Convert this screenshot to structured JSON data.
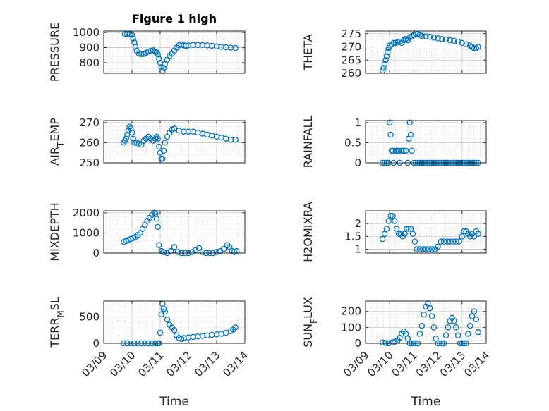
{
  "figure": {
    "title": "Figure 1 high",
    "marker_color": "#0072BD",
    "background": "#ffffff"
  },
  "chart_data": [
    {
      "type": "scatter",
      "id": "pressure",
      "title": "Figure 1 high",
      "xlabel": "",
      "ylabel": "PRESSURE",
      "xlim": [
        "03/09",
        "03/14"
      ],
      "ylim": [
        730,
        1010
      ],
      "yticks": [
        800,
        900,
        1000
      ],
      "xticks": [
        "03/09",
        "03/10",
        "03/11",
        "03/12",
        "03/13",
        "03/14"
      ],
      "show_xtick_labels": false,
      "grid": true,
      "x": [
        "03/09 18:00",
        "03/09 20:00",
        "03/09 22:00",
        "03/10 00:00",
        "03/10 01:00",
        "03/10 02:00",
        "03/10 03:00",
        "03/10 04:00",
        "03/10 06:00",
        "03/10 08:00",
        "03/10 10:00",
        "03/10 12:00",
        "03/10 14:00",
        "03/10 16:00",
        "03/10 18:00",
        "03/10 20:00",
        "03/10 21:00",
        "03/10 22:00",
        "03/10 23:00",
        "03/11 00:00",
        "03/11 01:00",
        "03/11 02:00",
        "03/11 03:00",
        "03/11 04:00",
        "03/11 06:00",
        "03/11 08:00",
        "03/11 10:00",
        "03/11 12:00",
        "03/11 14:00",
        "03/11 16:00",
        "03/11 18:00",
        "03/11 20:00",
        "03/11 22:00",
        "03/12 00:00",
        "03/12 04:00",
        "03/12 08:00",
        "03/12 12:00",
        "03/12 16:00",
        "03/12 20:00",
        "03/13 00:00",
        "03/13 04:00",
        "03/13 08:00",
        "03/13 12:00",
        "03/13 16:00"
      ],
      "y": [
        990,
        990,
        988,
        985,
        960,
        935,
        905,
        880,
        860,
        857,
        858,
        865,
        875,
        878,
        882,
        872,
        868,
        855,
        825,
        800,
        770,
        745,
        765,
        790,
        820,
        845,
        860,
        880,
        900,
        915,
        922,
        915,
        912,
        915,
        918,
        918,
        917,
        915,
        912,
        908,
        905,
        902,
        900,
        898
      ]
    },
    {
      "type": "scatter",
      "id": "theta",
      "xlabel": "",
      "ylabel": "THETA",
      "xlim": [
        "03/09",
        "03/14"
      ],
      "ylim": [
        260,
        276
      ],
      "yticks": [
        260,
        265,
        270,
        275
      ],
      "xticks": [
        "03/09",
        "03/10",
        "03/11",
        "03/12",
        "03/13",
        "03/14"
      ],
      "show_xtick_labels": false,
      "grid": true,
      "x": [
        "03/09 17:00",
        "03/09 18:00",
        "03/09 19:00",
        "03/09 20:00",
        "03/09 21:00",
        "03/09 22:00",
        "03/09 23:00",
        "03/10 00:00",
        "03/10 02:00",
        "03/10 04:00",
        "03/10 06:00",
        "03/10 08:00",
        "03/10 10:00",
        "03/10 12:00",
        "03/10 14:00",
        "03/10 16:00",
        "03/10 18:00",
        "03/10 20:00",
        "03/10 22:00",
        "03/11 00:00",
        "03/11 02:00",
        "03/11 04:00",
        "03/11 06:00",
        "03/11 08:00",
        "03/11 12:00",
        "03/11 16:00",
        "03/11 20:00",
        "03/12 00:00",
        "03/12 04:00",
        "03/12 08:00",
        "03/12 12:00",
        "03/12 16:00",
        "03/12 20:00",
        "03/13 00:00",
        "03/13 04:00",
        "03/13 08:00",
        "03/13 10:00",
        "03/13 12:00",
        "03/13 14:00",
        "03/13 16:00"
      ],
      "y": [
        261,
        262,
        263.5,
        265,
        266.5,
        268,
        269.5,
        270.5,
        271,
        271.5,
        271.5,
        271.8,
        272,
        271.5,
        272.5,
        273,
        272.5,
        273.5,
        274,
        274.5,
        275,
        274.8,
        274.5,
        274.2,
        274,
        273.8,
        273.5,
        273.2,
        273,
        272.8,
        272.5,
        272.3,
        272,
        271.5,
        271,
        270.5,
        270,
        269.5,
        269.5,
        270
      ]
    },
    {
      "type": "scatter",
      "id": "air_temp",
      "xlabel": "",
      "ylabel": "AIR_TEMP",
      "ylabel_parts": [
        "AIR",
        "T",
        "EMP"
      ],
      "xlim": [
        "03/09",
        "03/14"
      ],
      "ylim": [
        250,
        271
      ],
      "yticks": [
        250,
        260,
        270
      ],
      "xticks": [
        "03/09",
        "03/10",
        "03/11",
        "03/12",
        "03/13",
        "03/14"
      ],
      "show_xtick_labels": false,
      "grid": true,
      "x": [
        "03/09 17:00",
        "03/09 18:00",
        "03/09 19:00",
        "03/09 20:00",
        "03/09 21:00",
        "03/09 22:00",
        "03/09 23:00",
        "03/10 00:00",
        "03/10 01:00",
        "03/10 02:00",
        "03/10 04:00",
        "03/10 06:00",
        "03/10 08:00",
        "03/10 10:00",
        "03/10 12:00",
        "03/10 14:00",
        "03/10 16:00",
        "03/10 18:00",
        "03/10 20:00",
        "03/10 21:00",
        "03/10 22:00",
        "03/10 23:00",
        "03/11 00:00",
        "03/11 01:00",
        "03/11 02:00",
        "03/11 03:00",
        "03/11 04:00",
        "03/11 06:00",
        "03/11 08:00",
        "03/11 10:00",
        "03/11 12:00",
        "03/11 16:00",
        "03/11 20:00",
        "03/12 00:00",
        "03/12 04:00",
        "03/12 08:00",
        "03/12 12:00",
        "03/12 16:00",
        "03/12 20:00",
        "03/13 00:00",
        "03/13 04:00",
        "03/13 08:00",
        "03/13 12:00",
        "03/13 16:00"
      ],
      "y": [
        260,
        261,
        262,
        264,
        266,
        268,
        267,
        265,
        262,
        260,
        260,
        259.5,
        259,
        261,
        262,
        263,
        262,
        261,
        262,
        263,
        262,
        258,
        255,
        252,
        252,
        256,
        260,
        263,
        265,
        266.5,
        267,
        266,
        265.5,
        265.5,
        265.5,
        265,
        264.5,
        264,
        263.5,
        263,
        262.5,
        262,
        261.5,
        261.5
      ]
    },
    {
      "type": "scatter",
      "id": "rainfall",
      "xlabel": "",
      "ylabel": "RAINFALL",
      "xlim": [
        "03/09",
        "03/14"
      ],
      "ylim": [
        0,
        1.05
      ],
      "yticks": [
        0,
        0.5,
        1
      ],
      "xticks": [
        "03/09",
        "03/10",
        "03/11",
        "03/12",
        "03/13",
        "03/14"
      ],
      "show_xtick_labels": false,
      "grid": true,
      "x": [
        "03/09 17:00",
        "03/09 19:00",
        "03/09 21:00",
        "03/09 23:00",
        "03/10 00:00",
        "03/10 01:00",
        "03/10 02:00",
        "03/10 03:00",
        "03/10 04:00",
        "03/10 06:00",
        "03/10 08:00",
        "03/10 09:00",
        "03/10 10:00",
        "03/10 12:00",
        "03/10 14:00",
        "03/10 16:00",
        "03/10 18:00",
        "03/10 19:00",
        "03/10 20:00",
        "03/10 21:00",
        "03/10 22:00",
        "03/11 00:00",
        "03/11 02:00",
        "03/11 04:00",
        "03/11 06:00",
        "03/11 08:00",
        "03/11 10:00",
        "03/11 12:00",
        "03/11 14:00",
        "03/11 16:00",
        "03/11 18:00",
        "03/11 20:00",
        "03/11 22:00",
        "03/12 00:00",
        "03/12 02:00",
        "03/12 04:00",
        "03/12 06:00",
        "03/12 08:00",
        "03/12 10:00",
        "03/12 12:00",
        "03/12 14:00",
        "03/12 16:00",
        "03/12 18:00",
        "03/12 20:00",
        "03/12 22:00",
        "03/13 00:00",
        "03/13 02:00",
        "03/13 04:00",
        "03/13 06:00",
        "03/13 08:00",
        "03/13 10:00",
        "03/13 12:00",
        "03/13 14:00",
        "03/13 16:00"
      ],
      "y": [
        0,
        0,
        0,
        0,
        1,
        0.7,
        0.3,
        0.3,
        0,
        0.3,
        0.3,
        0.3,
        0,
        0.3,
        0.3,
        0.3,
        0,
        0.6,
        1,
        0.7,
        0.3,
        0,
        0,
        0,
        0,
        0,
        0,
        0,
        0,
        0,
        0,
        0,
        0,
        0,
        0,
        0,
        0,
        0,
        0,
        0,
        0,
        0,
        0,
        0,
        0,
        0,
        0,
        0,
        0,
        0,
        0,
        0,
        0,
        0
      ]
    },
    {
      "type": "scatter",
      "id": "mixdepth",
      "xlabel": "",
      "ylabel": "MIXDEPTH",
      "xlim": [
        "03/09",
        "03/14"
      ],
      "ylim": [
        0,
        2100
      ],
      "yticks": [
        0,
        1000,
        2000
      ],
      "xticks": [
        "03/09",
        "03/10",
        "03/11",
        "03/12",
        "03/13",
        "03/14"
      ],
      "show_xtick_labels": false,
      "grid": true,
      "x": [
        "03/09 17:00",
        "03/09 19:00",
        "03/09 21:00",
        "03/09 23:00",
        "03/10 01:00",
        "03/10 03:00",
        "03/10 05:00",
        "03/10 07:00",
        "03/10 09:00",
        "03/10 11:00",
        "03/10 13:00",
        "03/10 15:00",
        "03/10 17:00",
        "03/10 19:00",
        "03/10 20:00",
        "03/10 21:00",
        "03/10 22:00",
        "03/10 23:00",
        "03/11 01:00",
        "03/11 03:00",
        "03/11 06:00",
        "03/11 09:00",
        "03/11 12:00",
        "03/11 15:00",
        "03/11 18:00",
        "03/11 21:00",
        "03/12 00:00",
        "03/12 03:00",
        "03/12 06:00",
        "03/12 09:00",
        "03/12 12:00",
        "03/12 15:00",
        "03/12 18:00",
        "03/12 21:00",
        "03/13 00:00",
        "03/13 03:00",
        "03/13 06:00",
        "03/13 09:00",
        "03/13 11:00",
        "03/13 13:00",
        "03/13 15:00",
        "03/13 17:00"
      ],
      "y": [
        550,
        600,
        650,
        700,
        750,
        800,
        900,
        1000,
        1200,
        1400,
        1600,
        1750,
        1900,
        2000,
        1950,
        1700,
        1300,
        400,
        100,
        50,
        0,
        100,
        300,
        50,
        0,
        0,
        0,
        50,
        150,
        250,
        50,
        0,
        0,
        0,
        50,
        100,
        200,
        400,
        300,
        100,
        50,
        100
      ]
    },
    {
      "type": "scatter",
      "id": "h2omixra",
      "xlabel": "",
      "ylabel": "H2OMIXRA",
      "xlim": [
        "03/09",
        "03/14"
      ],
      "ylim": [
        0.85,
        2.5
      ],
      "yticks": [
        1,
        1.5,
        2
      ],
      "xticks": [
        "03/09",
        "03/10",
        "03/11",
        "03/12",
        "03/13",
        "03/14"
      ],
      "show_xtick_labels": false,
      "grid": true,
      "x": [
        "03/09 17:00",
        "03/09 19:00",
        "03/09 21:00",
        "03/09 23:00",
        "03/10 01:00",
        "03/10 03:00",
        "03/10 05:00",
        "03/10 07:00",
        "03/10 09:00",
        "03/10 11:00",
        "03/10 13:00",
        "03/10 15:00",
        "03/10 17:00",
        "03/10 19:00",
        "03/10 21:00",
        "03/10 23:00",
        "03/11 01:00",
        "03/11 03:00",
        "03/11 06:00",
        "03/11 09:00",
        "03/11 12:00",
        "03/11 15:00",
        "03/11 18:00",
        "03/11 21:00",
        "03/12 00:00",
        "03/12 03:00",
        "03/12 06:00",
        "03/12 09:00",
        "03/12 12:00",
        "03/12 15:00",
        "03/12 18:00",
        "03/12 21:00",
        "03/13 00:00",
        "03/13 02:00",
        "03/13 04:00",
        "03/13 06:00",
        "03/13 08:00",
        "03/13 10:00",
        "03/13 12:00",
        "03/13 14:00",
        "03/13 16:00"
      ],
      "y": [
        1.4,
        1.6,
        1.8,
        2.1,
        2.3,
        2.3,
        2.1,
        1.8,
        1.6,
        1.6,
        1.5,
        1.6,
        1.8,
        1.8,
        1.8,
        1.6,
        1.3,
        1.0,
        1.0,
        1.0,
        1.0,
        1.0,
        1.0,
        1.0,
        1.1,
        1.3,
        1.3,
        1.3,
        1.3,
        1.3,
        1.3,
        1.3,
        1.5,
        1.7,
        1.7,
        1.6,
        1.5,
        1.6,
        1.5,
        1.7,
        1.6
      ]
    },
    {
      "type": "scatter",
      "id": "terr_msl",
      "xlabel": "Time",
      "ylabel": "TERR_MSL",
      "ylabel_parts": [
        "TERR",
        "M",
        "SL"
      ],
      "xlim": [
        "03/09",
        "03/14"
      ],
      "ylim": [
        0,
        800
      ],
      "yticks": [
        0,
        500
      ],
      "xticks": [
        "03/09",
        "03/10",
        "03/11",
        "03/12",
        "03/13",
        "03/14"
      ],
      "show_xtick_labels": true,
      "grid": true,
      "x": [
        "03/09 17:00",
        "03/09 20:00",
        "03/09 23:00",
        "03/10 02:00",
        "03/10 05:00",
        "03/10 08:00",
        "03/10 11:00",
        "03/10 14:00",
        "03/10 17:00",
        "03/10 20:00",
        "03/10 22:00",
        "03/10 23:00",
        "03/11 00:00",
        "03/11 01:00",
        "03/11 02:00",
        "03/11 03:00",
        "03/11 04:00",
        "03/11 06:00",
        "03/11 08:00",
        "03/11 10:00",
        "03/11 12:00",
        "03/11 14:00",
        "03/11 16:00",
        "03/11 18:00",
        "03/11 20:00",
        "03/12 00:00",
        "03/12 04:00",
        "03/12 08:00",
        "03/12 12:00",
        "03/12 16:00",
        "03/12 20:00",
        "03/13 00:00",
        "03/13 04:00",
        "03/13 08:00",
        "03/13 12:00",
        "03/13 14:00",
        "03/13 16:00"
      ],
      "y": [
        0,
        0,
        0,
        0,
        0,
        0,
        0,
        0,
        0,
        0,
        0,
        0,
        200,
        550,
        750,
        650,
        600,
        450,
        350,
        300,
        250,
        150,
        100,
        80,
        100,
        110,
        120,
        130,
        140,
        150,
        160,
        170,
        180,
        200,
        230,
        260,
        300
      ]
    },
    {
      "type": "scatter",
      "id": "sun_flux",
      "xlabel": "Time",
      "ylabel": "SUN_FLUX",
      "ylabel_parts": [
        "SUN",
        "F",
        "LUX"
      ],
      "xlim": [
        "03/09",
        "03/14"
      ],
      "ylim": [
        0,
        265
      ],
      "yticks": [
        0,
        100,
        200
      ],
      "xticks": [
        "03/09",
        "03/10",
        "03/11",
        "03/12",
        "03/13",
        "03/14"
      ],
      "show_xtick_labels": true,
      "grid": true,
      "x": [
        "03/09 17:00",
        "03/09 20:00",
        "03/09 23:00",
        "03/10 02:00",
        "03/10 05:00",
        "03/10 08:00",
        "03/10 10:00",
        "03/10 12:00",
        "03/10 14:00",
        "03/10 16:00",
        "03/10 18:00",
        "03/10 20:00",
        "03/10 22:00",
        "03/11 00:00",
        "03/11 02:00",
        "03/11 04:00",
        "03/11 06:00",
        "03/11 08:00",
        "03/11 10:00",
        "03/11 12:00",
        "03/11 14:00",
        "03/11 16:00",
        "03/11 18:00",
        "03/11 20:00",
        "03/11 22:00",
        "03/12 00:00",
        "03/12 02:00",
        "03/12 04:00",
        "03/12 06:00",
        "03/12 08:00",
        "03/12 10:00",
        "03/12 12:00",
        "03/12 14:00",
        "03/12 16:00",
        "03/12 18:00",
        "03/12 20:00",
        "03/12 22:00",
        "03/13 00:00",
        "03/13 02:00",
        "03/13 04:00",
        "03/13 06:00",
        "03/13 08:00",
        "03/13 10:00",
        "03/13 12:00",
        "03/13 14:00",
        "03/13 16:00"
      ],
      "y": [
        5,
        2,
        0,
        5,
        10,
        20,
        35,
        60,
        75,
        60,
        30,
        0,
        0,
        0,
        0,
        0,
        60,
        110,
        180,
        230,
        250,
        220,
        170,
        100,
        30,
        0,
        0,
        0,
        0,
        50,
        100,
        140,
        160,
        140,
        100,
        50,
        0,
        0,
        0,
        0,
        60,
        110,
        170,
        200,
        150,
        70
      ]
    }
  ]
}
